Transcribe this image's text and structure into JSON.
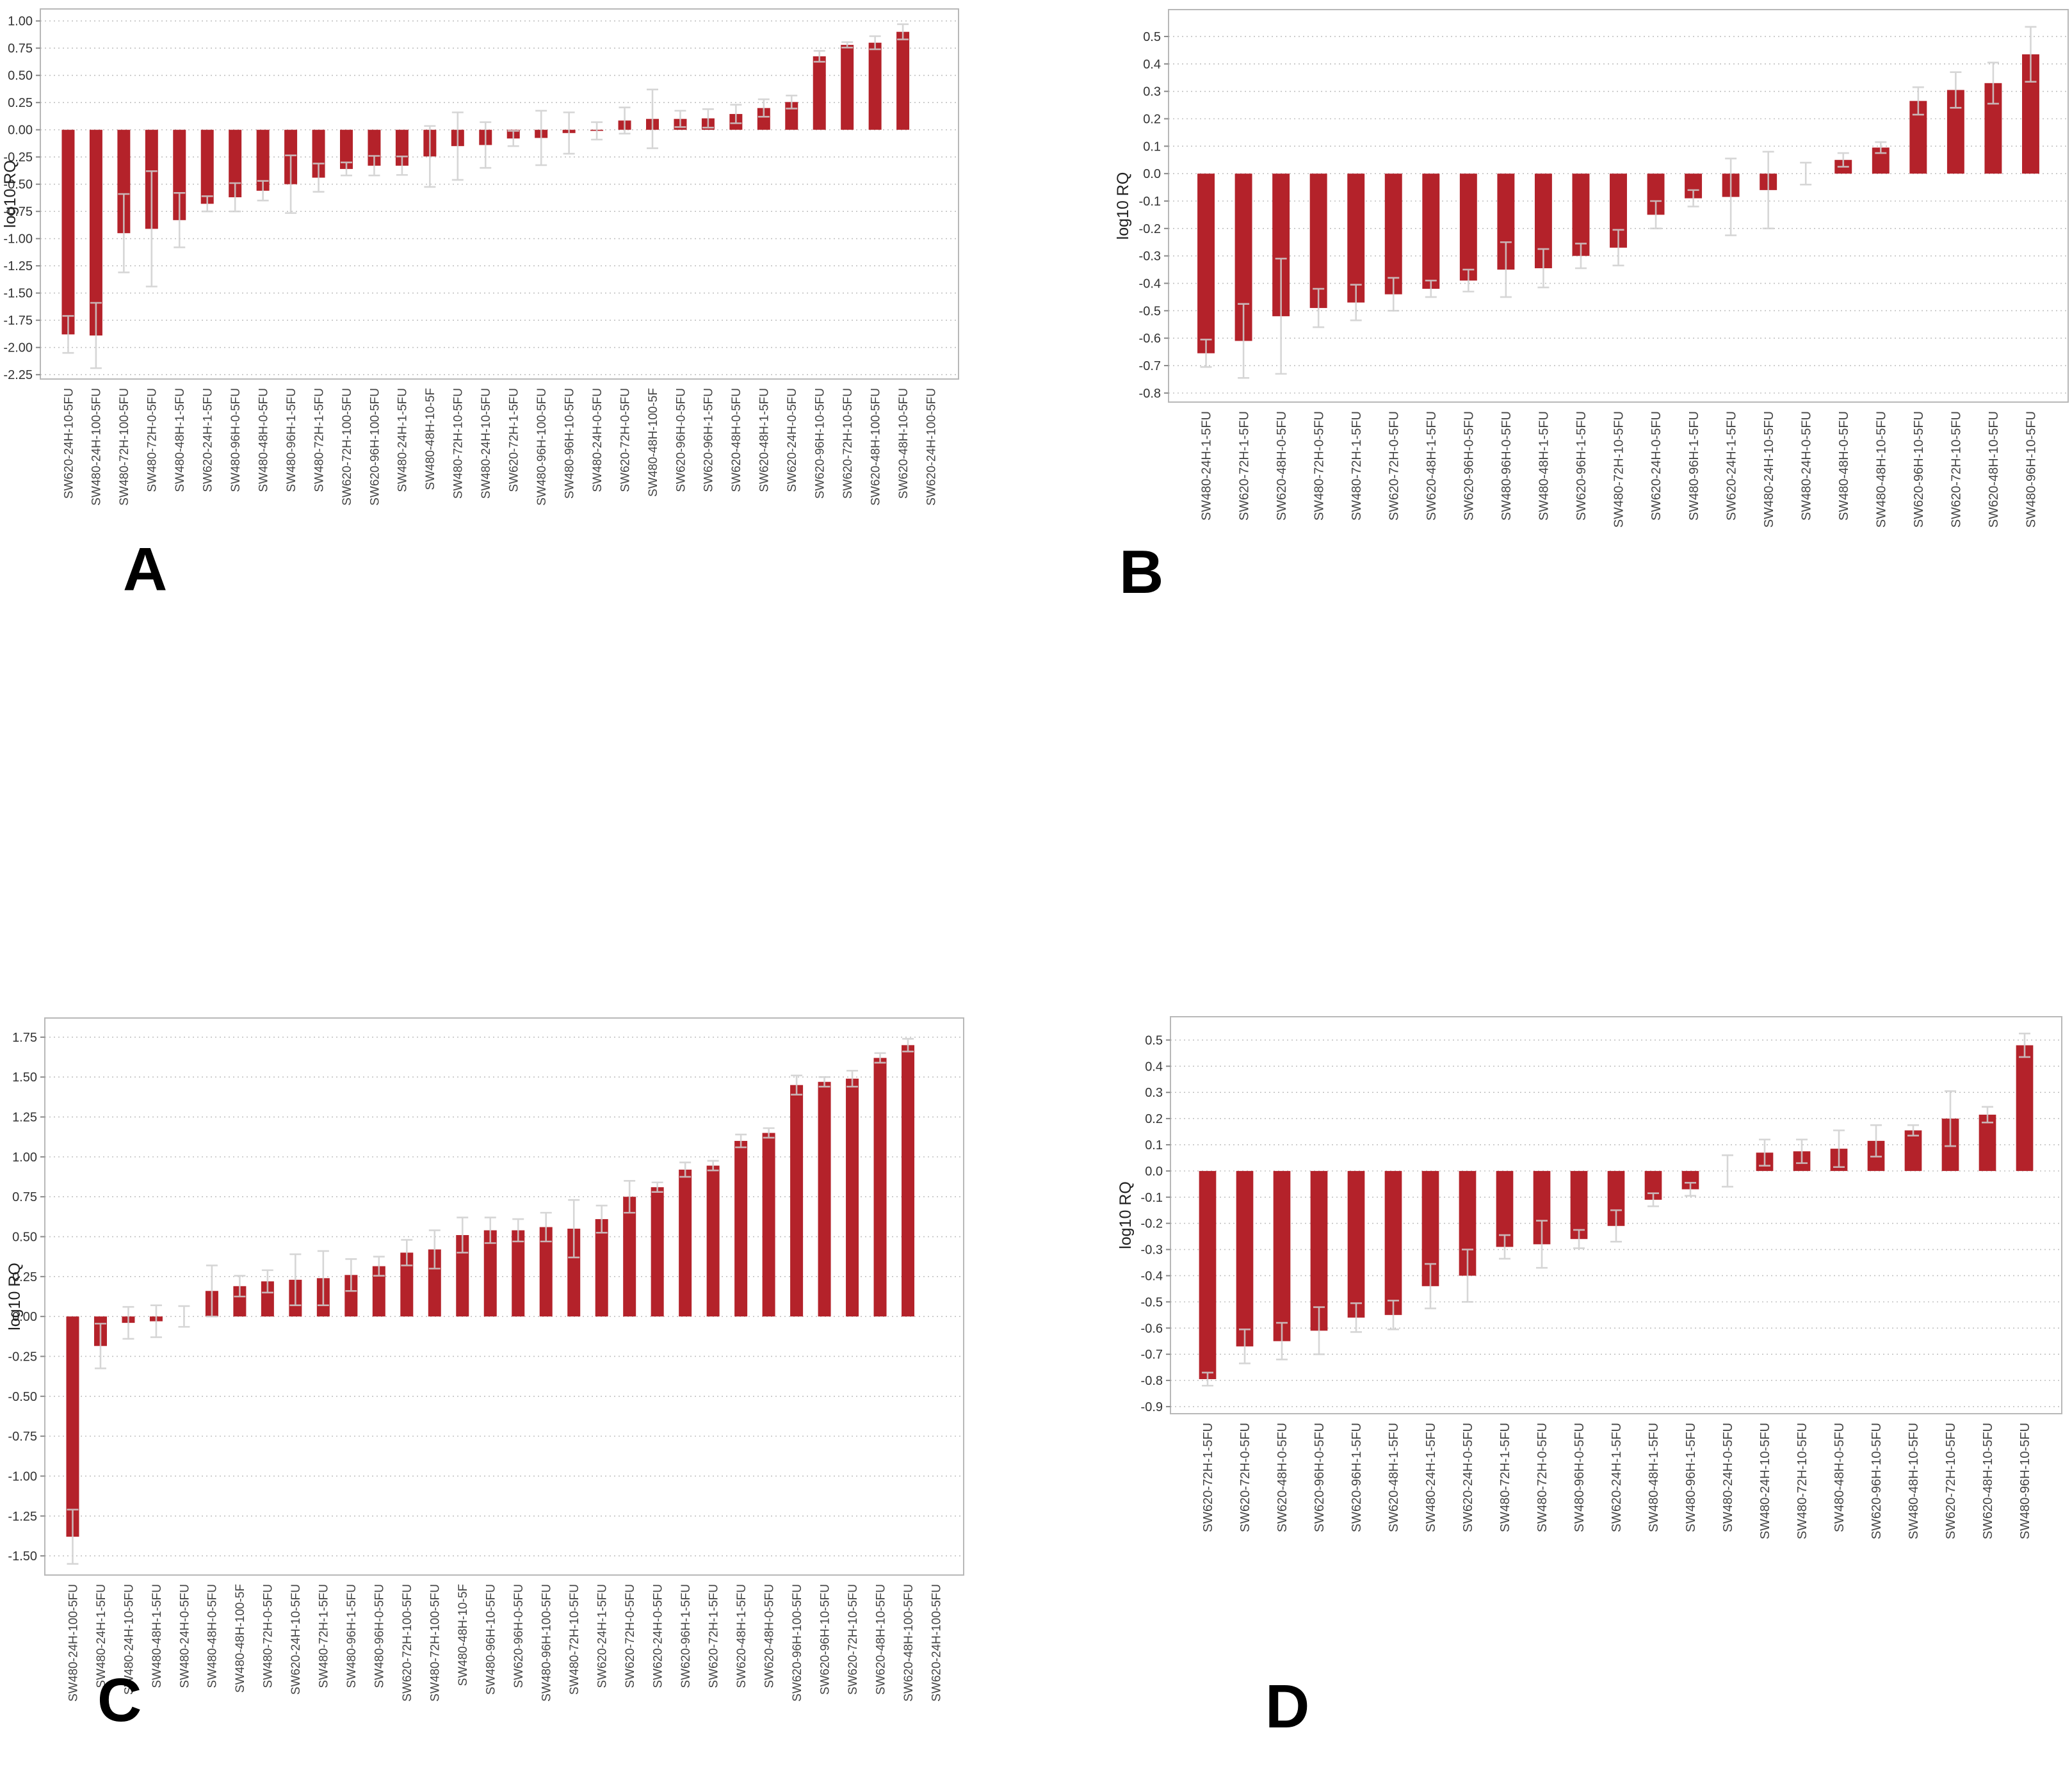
{
  "colors": {
    "bar": "#b4222a",
    "error_bar": "#cfcfcf",
    "gridline": "#c2c2c2",
    "plot_border": "#b8b8b8",
    "tick_text": "#333333",
    "label_text": "#444444"
  },
  "chart_data": [
    {
      "type": "bar",
      "letter": "A",
      "ylabel": "log10 RQ",
      "ylim": [
        -2.29,
        1.11
      ],
      "grid": "dotted-horizontal",
      "legend": "none",
      "yticks": [
        "1.00",
        "0.75",
        "0.50",
        "0.25",
        "0.00",
        "-0.25",
        "-0.50",
        "-0.75",
        "-1.00",
        "-1.25",
        "-1.50",
        "-1.75",
        "-2.00",
        "-2.25"
      ],
      "categories": [
        "SW620-24H-10-5FU",
        "SW480-24H-100-5FU",
        "SW480-72H-100-5FU",
        "SW480-72H-0-5FU",
        "SW480-48H-1-5FU",
        "SW620-24H-1-5FU",
        "SW480-96H-0-5FU",
        "SW480-48H-0-5FU",
        "SW480-96H-1-5FU",
        "SW480-72H-1-5FU",
        "SW620-72H-100-5FU",
        "SW620-96H-100-5FU",
        "SW480-24H-1-5FU",
        "SW480-48H-10-5F",
        "SW480-72H-10-5FU",
        "SW480-24H-10-5FU",
        "SW620-72H-1-5FU",
        "SW480-96H-100-5FU",
        "SW480-96H-10-5FU",
        "SW480-24H-0-5FU",
        "SW620-72H-0-5FU",
        "SW480-48H-100-5F",
        "SW620-96H-0-5FU",
        "SW620-96H-1-5FU",
        "SW620-48H-0-5FU",
        "SW620-48H-1-5FU",
        "SW620-24H-0-5FU",
        "SW620-96H-10-5FU",
        "SW620-72H-10-5FU",
        "SW620-48H-100-5FU",
        "SW620-48H-10-5FU",
        "SW620-24H-100-5FU"
      ],
      "values": [
        -1.88,
        -1.89,
        -0.95,
        -0.91,
        -0.83,
        -0.68,
        -0.62,
        -0.56,
        -0.5,
        -0.44,
        -0.36,
        -0.33,
        -0.33,
        -0.245,
        -0.15,
        -0.14,
        -0.08,
        -0.075,
        -0.03,
        -0.01,
        0.085,
        0.1,
        0.1,
        0.105,
        0.145,
        0.2,
        0.255,
        0.675,
        0.78,
        0.8,
        0.9,
        0.0
      ],
      "errors": [
        0.17,
        0.3,
        0.36,
        0.53,
        0.25,
        0.07,
        0.13,
        0.09,
        0.265,
        0.13,
        0.06,
        0.09,
        0.085,
        0.28,
        0.31,
        0.21,
        0.07,
        0.25,
        0.19,
        0.08,
        0.12,
        0.27,
        0.075,
        0.085,
        0.085,
        0.08,
        0.06,
        0.05,
        0.025,
        0.06,
        0.07,
        0.0
      ]
    },
    {
      "type": "bar",
      "letter": "B",
      "ylabel": "log10 RQ",
      "ylim": [
        -0.833,
        0.598
      ],
      "grid": "dotted-horizontal",
      "legend": "none",
      "yticks": [
        "0.5",
        "0.4",
        "0.3",
        "0.2",
        "0.1",
        "0.0",
        "-0.1",
        "-0.2",
        "-0.3",
        "-0.4",
        "-0.5",
        "-0.6",
        "-0.7",
        "-0.8"
      ],
      "categories": [
        "SW480-24H-1-5FU",
        "SW620-72H-1-5FU",
        "SW620-48H-0-5FU",
        "SW480-72H-0-5FU",
        "SW480-72H-1-5FU",
        "SW620-72H-0-5FU",
        "SW620-48H-1-5FU",
        "SW620-96H-0-5FU",
        "SW480-96H-0-5FU",
        "SW480-48H-1-5FU",
        "SW620-96H-1-5FU",
        "SW480-72H-10-5FU",
        "SW620-24H-0-5FU",
        "SW480-96H-1-5FU",
        "SW620-24H-1-5FU",
        "SW480-24H-10-5FU",
        "SW480-24H-0-5FU",
        "SW480-48H-0-5FU",
        "SW480-48H-10-5FU",
        "SW620-96H-10-5FU",
        "SW620-72H-10-5FU",
        "SW620-48H-10-5FU",
        "SW480-96H-10-5FU"
      ],
      "values": [
        -0.655,
        -0.61,
        -0.52,
        -0.49,
        -0.47,
        -0.44,
        -0.42,
        -0.39,
        -0.35,
        -0.345,
        -0.3,
        -0.27,
        -0.15,
        -0.09,
        -0.085,
        -0.06,
        0.0,
        0.05,
        0.095,
        0.265,
        0.305,
        0.33,
        0.435
      ],
      "errors": [
        0.05,
        0.135,
        0.21,
        0.07,
        0.065,
        0.06,
        0.03,
        0.04,
        0.1,
        0.07,
        0.045,
        0.065,
        0.05,
        0.03,
        0.14,
        0.14,
        0.04,
        0.025,
        0.02,
        0.05,
        0.065,
        0.075,
        0.1
      ]
    },
    {
      "type": "bar",
      "letter": "C",
      "ylabel": "log10 RQ",
      "ylim": [
        -1.62,
        1.87
      ],
      "grid": "dotted-horizontal",
      "legend": "none",
      "yticks": [
        "1.75",
        "1.50",
        "1.25",
        "1.00",
        "0.75",
        "0.50",
        "0.25",
        "0.00",
        "-0.25",
        "-0.50",
        "-0.75",
        "-1.00",
        "-1.25",
        "-1.50"
      ],
      "categories": [
        "SW480-24H-100-5FU",
        "SW480-24H-1-5FU",
        "SW480-24H-10-5FU",
        "SW480-48H-1-5FU",
        "SW480-24H-0-5FU",
        "SW480-48H-0-5FU",
        "SW480-48H-100-5F",
        "SW480-72H-0-5FU",
        "SW620-24H-10-5FU",
        "SW480-72H-1-5FU",
        "SW480-96H-1-5FU",
        "SW480-96H-0-5FU",
        "SW620-72H-100-5FU",
        "SW480-72H-100-5FU",
        "SW480-48H-10-5F",
        "SW480-96H-10-5FU",
        "SW620-96H-0-5FU",
        "SW480-96H-100-5FU",
        "SW480-72H-10-5FU",
        "SW620-24H-1-5FU",
        "SW620-72H-0-5FU",
        "SW620-24H-0-5FU",
        "SW620-96H-1-5FU",
        "SW620-72H-1-5FU",
        "SW620-48H-1-5FU",
        "SW620-48H-0-5FU",
        "SW620-96H-100-5FU",
        "SW620-96H-10-5FU",
        "SW620-72H-10-5FU",
        "SW620-48H-10-5FU",
        "SW620-48H-100-5FU",
        "SW620-24H-100-5FU"
      ],
      "values": [
        -1.38,
        -0.185,
        -0.04,
        -0.03,
        0.0,
        0.16,
        0.19,
        0.22,
        0.23,
        0.24,
        0.26,
        0.315,
        0.4,
        0.42,
        0.51,
        0.54,
        0.54,
        0.56,
        0.55,
        0.61,
        0.75,
        0.81,
        0.92,
        0.945,
        1.1,
        1.15,
        1.45,
        1.47,
        1.49,
        1.62,
        1.7,
        0.0
      ],
      "errors": [
        0.17,
        0.14,
        0.1,
        0.1,
        0.065,
        0.16,
        0.065,
        0.07,
        0.16,
        0.17,
        0.1,
        0.06,
        0.08,
        0.12,
        0.11,
        0.08,
        0.07,
        0.09,
        0.18,
        0.085,
        0.1,
        0.03,
        0.045,
        0.03,
        0.04,
        0.03,
        0.06,
        0.03,
        0.05,
        0.03,
        0.04,
        0.0
      ]
    },
    {
      "type": "bar",
      "letter": "D",
      "ylabel": "log10 RQ",
      "ylim": [
        -0.927,
        0.589
      ],
      "grid": "dotted-horizontal",
      "legend": "none",
      "yticks": [
        "0.5",
        "0.4",
        "0.3",
        "0.2",
        "0.1",
        "0.0",
        "-0.1",
        "-0.2",
        "-0.3",
        "-0.4",
        "-0.5",
        "-0.6",
        "-0.7",
        "-0.8",
        "-0.9"
      ],
      "categories": [
        "SW620-72H-1-5FU",
        "SW620-72H-0-5FU",
        "SW620-48H-0-5FU",
        "SW620-96H-0-5FU",
        "SW620-96H-1-5FU",
        "SW620-48H-1-5FU",
        "SW480-24H-1-5FU",
        "SW620-24H-0-5FU",
        "SW480-72H-1-5FU",
        "SW480-72H-0-5FU",
        "SW480-96H-0-5FU",
        "SW620-24H-1-5FU",
        "SW480-48H-1-5FU",
        "SW480-96H-1-5FU",
        "SW480-24H-0-5FU",
        "SW480-24H-10-5FU",
        "SW480-72H-10-5FU",
        "SW480-48H-0-5FU",
        "SW620-96H-10-5FU",
        "SW480-48H-10-5FU",
        "SW620-72H-10-5FU",
        "SW620-48H-10-5FU",
        "SW480-96H-10-5FU"
      ],
      "values": [
        -0.795,
        -0.67,
        -0.65,
        -0.61,
        -0.56,
        -0.55,
        -0.44,
        -0.4,
        -0.29,
        -0.28,
        -0.26,
        -0.21,
        -0.11,
        -0.07,
        0.0,
        0.07,
        0.075,
        0.085,
        0.115,
        0.155,
        0.2,
        0.215,
        0.48
      ],
      "errors": [
        0.025,
        0.065,
        0.07,
        0.09,
        0.055,
        0.055,
        0.085,
        0.1,
        0.045,
        0.09,
        0.035,
        0.06,
        0.025,
        0.025,
        0.06,
        0.05,
        0.045,
        0.07,
        0.06,
        0.02,
        0.105,
        0.03,
        0.045
      ]
    }
  ]
}
